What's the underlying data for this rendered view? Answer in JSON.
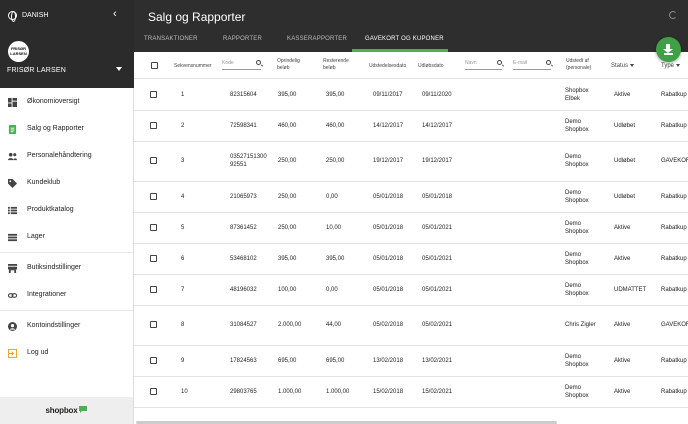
{
  "sidebar": {
    "language": "DANISH",
    "logo_text": "FRISØR LARSEN",
    "user": "FRISØR LARSEN",
    "items": [
      {
        "label": "Økonomioversigt",
        "icon": "dashboard-icon"
      },
      {
        "label": "Salg og Rapporter",
        "icon": "report-icon"
      },
      {
        "label": "Personalehåndtering",
        "icon": "people-icon"
      },
      {
        "label": "Kundeklub",
        "icon": "tag-icon"
      },
      {
        "label": "Produktkatalog",
        "icon": "list-icon"
      },
      {
        "label": "Lager",
        "icon": "inventory-icon"
      },
      {
        "label": "Butiksindstillinger",
        "icon": "store-icon"
      },
      {
        "label": "Integrationer",
        "icon": "link-icon"
      },
      {
        "label": "Kontoindstillinger",
        "icon": "account-icon"
      },
      {
        "label": "Log ud",
        "icon": "logout-icon"
      }
    ],
    "footer_brand": "shopbox"
  },
  "header": {
    "title": "Salg og Rapporter",
    "tabs": [
      "TRANSAKTIONER",
      "RAPPORTER",
      "KASSERAPPORTER",
      "GAVEKORT OG KUPONER"
    ]
  },
  "table": {
    "headers": {
      "seq": "Sekvensnummer",
      "code_placeholder": "Kode",
      "orig": "Oprindelig beløb",
      "rest": "Resterende beløb",
      "issued": "Udstedelsesdato",
      "expires": "Udløbsdato",
      "name_placeholder": "Navn",
      "email_placeholder": "E-mail",
      "issuedby": "Udstedt af (personale)",
      "status": "Status",
      "type": "Type"
    },
    "rows": [
      {
        "seq": "1",
        "code": "82315604",
        "code2": "",
        "orig": "395,00",
        "rest": "395,00",
        "issued": "09/11/2017",
        "expires": "09/11/2020",
        "by1": "Shopbox",
        "by2": "Elbek",
        "status": "Aktive",
        "type": "Rabatkup"
      },
      {
        "seq": "2",
        "code": "72598341",
        "code2": "",
        "orig": "460,00",
        "rest": "460,00",
        "issued": "14/12/2017",
        "expires": "14/12/2017",
        "by1": "Demo",
        "by2": "Shopbox",
        "status": "Udløbet",
        "type": "Rabatkup"
      },
      {
        "seq": "3",
        "code": "03527151300",
        "code2": "92551",
        "orig": "250,00",
        "rest": "250,00",
        "issued": "19/12/2017",
        "expires": "19/12/2017",
        "by1": "Demo",
        "by2": "Shopbox",
        "status": "Udløbet",
        "type": "GAVEKOR"
      },
      {
        "seq": "4",
        "code": "21065973",
        "code2": "",
        "orig": "250,00",
        "rest": "0,00",
        "issued": "05/01/2018",
        "expires": "05/01/2018",
        "by1": "Demo",
        "by2": "Shopbox",
        "status": "Udløbet",
        "type": "Rabatkup"
      },
      {
        "seq": "5",
        "code": "87361452",
        "code2": "",
        "orig": "250,00",
        "rest": "10,00",
        "issued": "05/01/2018",
        "expires": "05/01/2021",
        "by1": "Demo",
        "by2": "Shopbox",
        "status": "Aktive",
        "type": "Rabatkup"
      },
      {
        "seq": "6",
        "code": "53468102",
        "code2": "",
        "orig": "395,00",
        "rest": "395,00",
        "issued": "05/01/2018",
        "expires": "05/01/2021",
        "by1": "Demo",
        "by2": "Shopbox",
        "status": "Aktive",
        "type": "Rabatkup"
      },
      {
        "seq": "7",
        "code": "48196032",
        "code2": "",
        "orig": "100,00",
        "rest": "0,00",
        "issued": "05/01/2018",
        "expires": "05/01/2021",
        "by1": "Demo",
        "by2": "Shopbox",
        "status": "UDMATTET",
        "type": "Rabatkup"
      },
      {
        "seq": "8",
        "code": "31084527",
        "code2": "",
        "orig": "2.000,00",
        "rest": "44,00",
        "issued": "05/02/2018",
        "expires": "05/02/2021",
        "by1": "Chris Zigler",
        "by2": "",
        "status": "Aktive",
        "type": "GAVEKOR"
      },
      {
        "seq": "9",
        "code": "17824563",
        "code2": "",
        "orig": "695,00",
        "rest": "695,00",
        "issued": "13/02/2018",
        "expires": "13/02/2021",
        "by1": "Demo",
        "by2": "Shopbox",
        "status": "Aktive",
        "type": "Rabatkup"
      },
      {
        "seq": "10",
        "code": "29803765",
        "code2": "",
        "orig": "1.000,00",
        "rest": "1.000,00",
        "issued": "15/02/2018",
        "expires": "15/02/2021",
        "by1": "Demo",
        "by2": "Shopbox",
        "status": "Aktive",
        "type": "Rabatkup"
      }
    ]
  }
}
